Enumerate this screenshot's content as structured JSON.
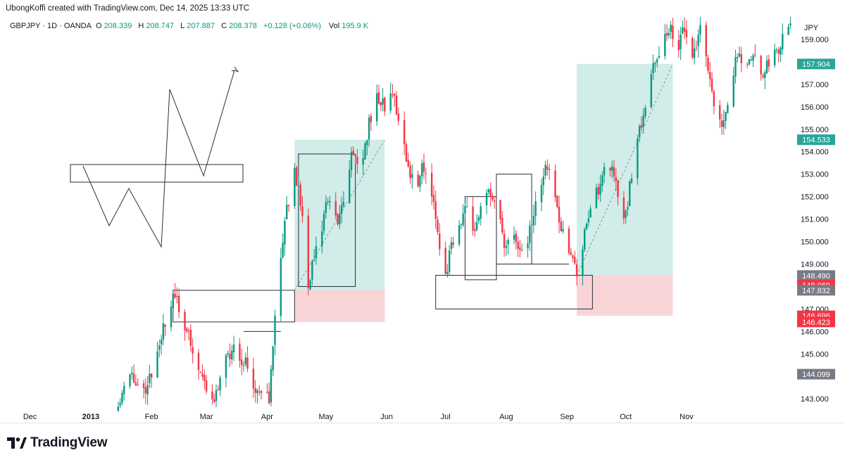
{
  "credit": "UbongKoffi created with TradingView.com, Dec 14, 2025 13:33 UTC",
  "legend": {
    "symbol": "GBPJPY · 1D · OANDA",
    "o_label": "O",
    "o_value": "208.339",
    "h_label": "H",
    "h_value": "208.747",
    "l_label": "L",
    "l_value": "207.887",
    "c_label": "C",
    "c_value": "208.378",
    "change": "+0.128 (+0.06%)",
    "vol_label": "Vol",
    "vol_value": "195.9 K"
  },
  "brand": {
    "name": "TradingView"
  },
  "colors": {
    "up": "#089981",
    "down": "#f23645",
    "target_zone": "#b2dfdb",
    "target_zone_dark": "#8fcfc4",
    "stop_zone": "#f8cdd0",
    "tag_green": "#26a69a",
    "tag_red": "#f23645",
    "tag_gray": "#787b86"
  },
  "chart_data": {
    "type": "candlestick",
    "symbol": "GBPJPY",
    "interval": "1D",
    "currency": "JPY",
    "ylim": [
      142.6,
      160.0
    ],
    "y_ticks": [
      "143.000",
      "144.000",
      "145.000",
      "146.000",
      "147.000",
      "148.000",
      "149.000",
      "150.000",
      "151.000",
      "152.000",
      "153.000",
      "154.000",
      "155.000",
      "156.000",
      "157.000",
      "158.000",
      "159.000"
    ],
    "x_ticks": [
      {
        "label": "Dec",
        "date": "2012-12-01"
      },
      {
        "label": "2013",
        "date": "2013-01-01",
        "bold": true
      },
      {
        "label": "Feb",
        "date": "2013-02-01"
      },
      {
        "label": "Mar",
        "date": "2013-03-01"
      },
      {
        "label": "Apr",
        "date": "2013-04-01"
      },
      {
        "label": "May",
        "date": "2013-05-01"
      },
      {
        "label": "Jun",
        "date": "2013-06-01"
      },
      {
        "label": "Jul",
        "date": "2013-07-01"
      },
      {
        "label": "Aug",
        "date": "2013-08-01"
      },
      {
        "label": "Sep",
        "date": "2013-09-01"
      },
      {
        "label": "Oct",
        "date": "2013-10-01"
      },
      {
        "label": "Nov",
        "date": "2013-11-01"
      }
    ],
    "price_tags": [
      {
        "value": 157.904,
        "label": "157.904",
        "color": "#26a69a"
      },
      {
        "value": 154.533,
        "label": "154.533",
        "color": "#26a69a"
      },
      {
        "value": 148.49,
        "label": "148.490",
        "color": "#787b86"
      },
      {
        "value": 148.06,
        "label": "148.060",
        "color": "#f23645"
      },
      {
        "value": 147.832,
        "label": "147.832",
        "color": "#787b86"
      },
      {
        "value": 146.696,
        "label": "146.696",
        "color": "#f23645"
      },
      {
        "value": 146.423,
        "label": "146.423",
        "color": "#f23645"
      },
      {
        "value": 144.099,
        "label": "144.099",
        "color": "#787b86"
      }
    ],
    "path": [
      {
        "date": "2013-01-15",
        "price": 143.0
      },
      {
        "date": "2013-01-22",
        "price": 144.0
      },
      {
        "date": "2013-01-28",
        "price": 143.4
      },
      {
        "date": "2013-02-03",
        "price": 144.5
      },
      {
        "date": "2013-02-08",
        "price": 146.4
      },
      {
        "date": "2013-02-12",
        "price": 147.7
      },
      {
        "date": "2013-02-16",
        "price": 146.7
      },
      {
        "date": "2013-02-22",
        "price": 145.2
      },
      {
        "date": "2013-02-28",
        "price": 143.7
      },
      {
        "date": "2013-03-05",
        "price": 143.0
      },
      {
        "date": "2013-03-10",
        "price": 144.5
      },
      {
        "date": "2013-03-16",
        "price": 145.4
      },
      {
        "date": "2013-03-22",
        "price": 144.3
      },
      {
        "date": "2013-03-28",
        "price": 143.2
      },
      {
        "date": "2013-04-02",
        "price": 143.0
      },
      {
        "date": "2013-04-05",
        "price": 146.5
      },
      {
        "date": "2013-04-08",
        "price": 149.0
      },
      {
        "date": "2013-04-11",
        "price": 151.5
      },
      {
        "date": "2013-04-15",
        "price": 153.2
      },
      {
        "date": "2013-04-19",
        "price": 151.2
      },
      {
        "date": "2013-04-22",
        "price": 148.2
      },
      {
        "date": "2013-04-27",
        "price": 150.0
      },
      {
        "date": "2013-05-02",
        "price": 151.8
      },
      {
        "date": "2013-05-07",
        "price": 150.8
      },
      {
        "date": "2013-05-11",
        "price": 152.5
      },
      {
        "date": "2013-05-15",
        "price": 154.2
      },
      {
        "date": "2013-05-19",
        "price": 153.0
      },
      {
        "date": "2013-05-23",
        "price": 155.4
      },
      {
        "date": "2013-05-27",
        "price": 156.4
      },
      {
        "date": "2013-05-31",
        "price": 156.0
      },
      {
        "date": "2013-06-04",
        "price": 156.6
      },
      {
        "date": "2013-06-08",
        "price": 155.3
      },
      {
        "date": "2013-06-12",
        "price": 153.2
      },
      {
        "date": "2013-06-16",
        "price": 152.6
      },
      {
        "date": "2013-06-20",
        "price": 153.4
      },
      {
        "date": "2013-06-24",
        "price": 152.2
      },
      {
        "date": "2013-06-28",
        "price": 150.0
      },
      {
        "date": "2013-07-01",
        "price": 148.4
      },
      {
        "date": "2013-07-04",
        "price": 149.8
      },
      {
        "date": "2013-07-08",
        "price": 150.8
      },
      {
        "date": "2013-07-12",
        "price": 151.6
      },
      {
        "date": "2013-07-16",
        "price": 150.4
      },
      {
        "date": "2013-07-20",
        "price": 151.6
      },
      {
        "date": "2013-07-24",
        "price": 152.3
      },
      {
        "date": "2013-07-28",
        "price": 151.0
      },
      {
        "date": "2013-08-01",
        "price": 149.6
      },
      {
        "date": "2013-08-05",
        "price": 150.6
      },
      {
        "date": "2013-08-09",
        "price": 149.4
      },
      {
        "date": "2013-08-13",
        "price": 150.4
      },
      {
        "date": "2013-08-17",
        "price": 152.0
      },
      {
        "date": "2013-08-21",
        "price": 153.5
      },
      {
        "date": "2013-08-25",
        "price": 152.3
      },
      {
        "date": "2013-08-29",
        "price": 150.6
      },
      {
        "date": "2013-09-02",
        "price": 149.8
      },
      {
        "date": "2013-09-06",
        "price": 148.5
      },
      {
        "date": "2013-09-08",
        "price": 149.3
      },
      {
        "date": "2013-09-10",
        "price": 150.3
      },
      {
        "date": "2013-09-14",
        "price": 151.6
      },
      {
        "date": "2013-09-18",
        "price": 152.7
      },
      {
        "date": "2013-09-22",
        "price": 153.6
      },
      {
        "date": "2013-09-26",
        "price": 152.8
      },
      {
        "date": "2013-09-30",
        "price": 150.8
      },
      {
        "date": "2013-10-03",
        "price": 152.4
      },
      {
        "date": "2013-10-07",
        "price": 154.6
      },
      {
        "date": "2013-10-11",
        "price": 156.1
      },
      {
        "date": "2013-10-15",
        "price": 157.7
      },
      {
        "date": "2013-10-19",
        "price": 158.3
      },
      {
        "date": "2013-10-23",
        "price": 159.6
      },
      {
        "date": "2013-10-27",
        "price": 158.6
      },
      {
        "date": "2013-10-31",
        "price": 159.4
      },
      {
        "date": "2013-11-04",
        "price": 158.3
      },
      {
        "date": "2013-11-08",
        "price": 159.3
      },
      {
        "date": "2013-11-12",
        "price": 157.6
      },
      {
        "date": "2013-11-16",
        "price": 155.8
      },
      {
        "date": "2013-11-20",
        "price": 155.3
      },
      {
        "date": "2013-11-24",
        "price": 157.4
      },
      {
        "date": "2013-11-28",
        "price": 158.4
      },
      {
        "date": "2013-12-02",
        "price": 157.6
      },
      {
        "date": "2013-12-06",
        "price": 158.3
      },
      {
        "date": "2013-12-10",
        "price": 157.1
      },
      {
        "date": "2013-12-14",
        "price": 158.4
      },
      {
        "date": "2013-12-18",
        "price": 158.6
      },
      {
        "date": "2013-12-21",
        "price": 159.3
      },
      {
        "date": "2013-12-24",
        "price": 160.0
      }
    ],
    "drawings": {
      "long_positions": [
        {
          "start": "2013-04-15",
          "end": "2013-05-31",
          "entry": 147.832,
          "target": 154.533,
          "stop": 146.423
        },
        {
          "start": "2013-09-06",
          "end": "2013-10-25",
          "entry": 148.49,
          "target": 157.904,
          "stop": 146.696
        }
      ],
      "rectangles": [
        {
          "start": "2013-02-12",
          "end": "2013-04-15",
          "top": 147.832,
          "bottom": 146.423
        },
        {
          "start": "2013-03-20",
          "end": "2013-04-08",
          "top": 146.0,
          "bottom": 146.0
        },
        {
          "start": "2013-04-17",
          "end": "2013-05-16",
          "top": 153.9,
          "bottom": 148.0
        },
        {
          "start": "2013-06-26",
          "end": "2013-09-14",
          "top": 148.5,
          "bottom": 147.0
        },
        {
          "start": "2013-07-11",
          "end": "2013-07-27",
          "top": 152.0,
          "bottom": 148.3
        },
        {
          "start": "2013-07-27",
          "end": "2013-08-14",
          "top": 153.0,
          "bottom": 149.0
        },
        {
          "start": "2013-08-01",
          "end": "2013-09-02",
          "top": 149.0,
          "bottom": 149.0
        }
      ]
    }
  }
}
